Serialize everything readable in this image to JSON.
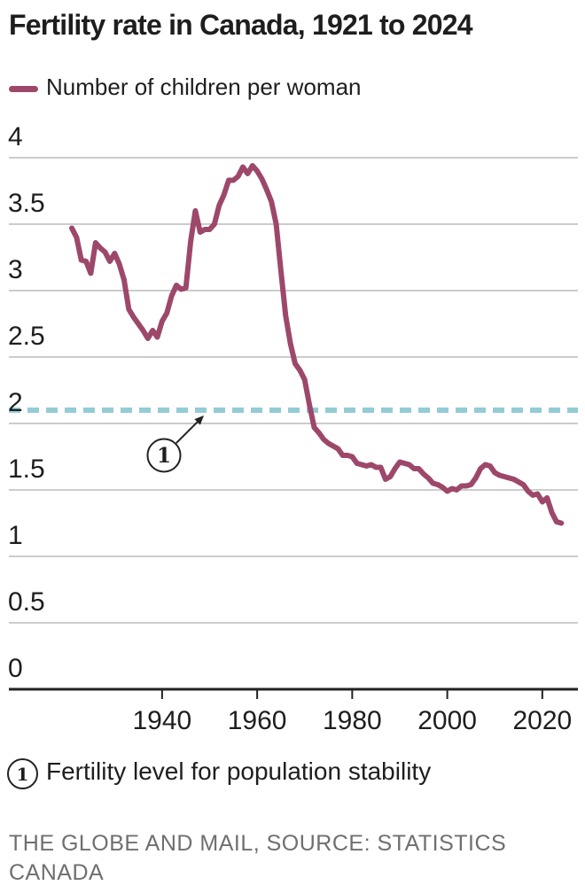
{
  "title": "Fertility rate in Canada, 1921 to 2024",
  "legend": {
    "label": "Number of children per woman",
    "swatch_color": "#9d486b"
  },
  "annotation": {
    "marker": "1",
    "footnote_marker": "1",
    "footnote_text": "Fertility level for population stability"
  },
  "source": "THE GLOBE AND MAIL, SOURCE: STATISTICS CANADA",
  "colors": {
    "line": "#9d486b",
    "replacement_dash": "#93ccd5",
    "grid": "#cccccc",
    "axis": "#222222",
    "text": "#1e1e1e",
    "source_text": "#6f6f6f"
  },
  "chart_data": {
    "type": "line",
    "title": "Fertility rate in Canada, 1921 to 2024",
    "xlabel": "",
    "ylabel": "Number of children per woman",
    "xlim": [
      1921,
      2024
    ],
    "ylim": [
      0,
      4
    ],
    "grid": true,
    "legend_position": "top-left",
    "yticks": [
      "4",
      "3.5",
      "3",
      "2.5",
      "2",
      "1.5",
      "1",
      "0.5",
      "0"
    ],
    "ytick_values": [
      4,
      3.5,
      3,
      2.5,
      2,
      1.5,
      1,
      0.5,
      0
    ],
    "xticks": [
      "1940",
      "1960",
      "1980",
      "2000",
      "2020"
    ],
    "xtick_values": [
      1940,
      1960,
      1980,
      2000,
      2020
    ],
    "reference_line": {
      "value": 2.1,
      "style": "dashed",
      "marker": "1",
      "meaning": "Fertility level for population stability"
    },
    "series": [
      {
        "name": "Number of children per woman",
        "x": [
          1921,
          1922,
          1923,
          1924,
          1925,
          1926,
          1927,
          1928,
          1929,
          1930,
          1931,
          1932,
          1933,
          1934,
          1935,
          1936,
          1937,
          1938,
          1939,
          1940,
          1941,
          1942,
          1943,
          1944,
          1945,
          1946,
          1947,
          1948,
          1949,
          1950,
          1951,
          1952,
          1953,
          1954,
          1955,
          1956,
          1957,
          1958,
          1959,
          1960,
          1961,
          1962,
          1963,
          1964,
          1965,
          1966,
          1967,
          1968,
          1969,
          1970,
          1971,
          1972,
          1973,
          1974,
          1975,
          1976,
          1977,
          1978,
          1979,
          1980,
          1981,
          1982,
          1983,
          1984,
          1985,
          1986,
          1987,
          1988,
          1989,
          1990,
          1991,
          1992,
          1993,
          1994,
          1995,
          1996,
          1997,
          1998,
          1999,
          2000,
          2001,
          2002,
          2003,
          2004,
          2005,
          2006,
          2007,
          2008,
          2009,
          2010,
          2011,
          2012,
          2013,
          2014,
          2015,
          2016,
          2017,
          2018,
          2019,
          2020,
          2021,
          2022,
          2023,
          2024
        ],
        "values": [
          3.47,
          3.4,
          3.23,
          3.22,
          3.13,
          3.36,
          3.32,
          3.29,
          3.22,
          3.28,
          3.2,
          3.08,
          2.86,
          2.8,
          2.75,
          2.7,
          2.64,
          2.7,
          2.65,
          2.77,
          2.83,
          2.96,
          3.04,
          3.01,
          3.02,
          3.37,
          3.6,
          3.44,
          3.46,
          3.46,
          3.5,
          3.64,
          3.72,
          3.83,
          3.83,
          3.86,
          3.93,
          3.88,
          3.94,
          3.9,
          3.84,
          3.76,
          3.67,
          3.5,
          3.15,
          2.81,
          2.6,
          2.45,
          2.4,
          2.33,
          2.14,
          1.97,
          1.93,
          1.88,
          1.85,
          1.83,
          1.81,
          1.76,
          1.76,
          1.75,
          1.7,
          1.69,
          1.68,
          1.69,
          1.67,
          1.67,
          1.58,
          1.6,
          1.66,
          1.71,
          1.7,
          1.69,
          1.66,
          1.66,
          1.62,
          1.59,
          1.55,
          1.54,
          1.52,
          1.49,
          1.51,
          1.5,
          1.53,
          1.53,
          1.54,
          1.59,
          1.66,
          1.69,
          1.68,
          1.63,
          1.61,
          1.6,
          1.59,
          1.58,
          1.56,
          1.54,
          1.49,
          1.46,
          1.47,
          1.41,
          1.44,
          1.33,
          1.26,
          1.25
        ]
      }
    ]
  }
}
